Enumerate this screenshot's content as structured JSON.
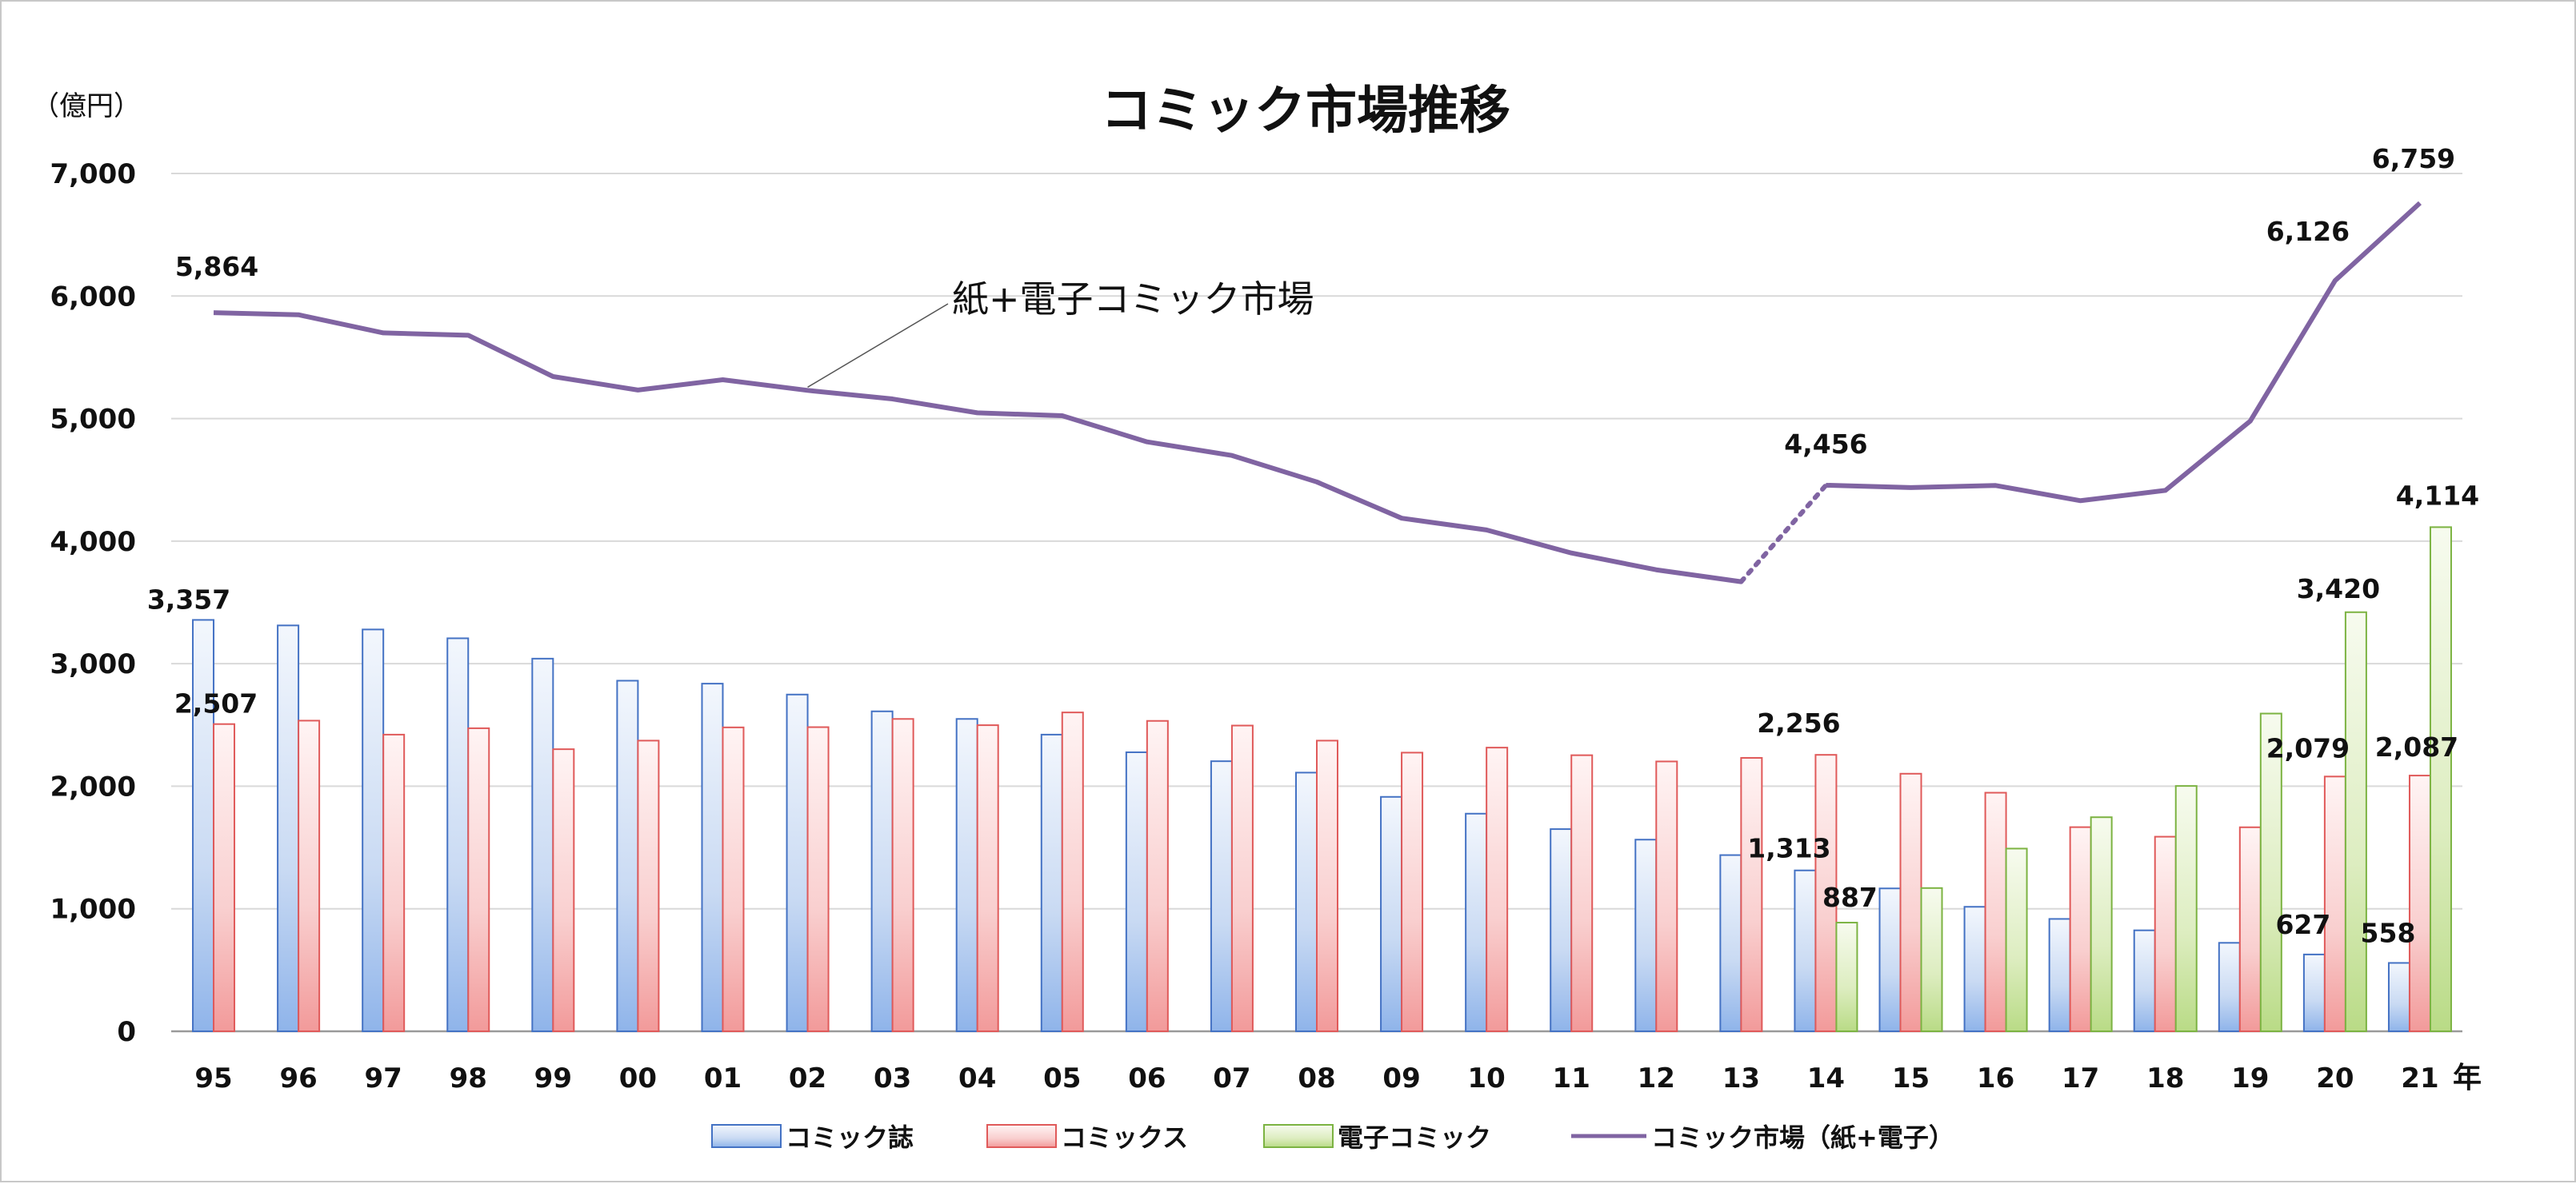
{
  "chart_data": {
    "type": "bar",
    "title": "コミック市場推移",
    "ylabel": "（億円）",
    "xlabel": "年",
    "ylim": [
      0,
      7000
    ],
    "yticks": [
      "0",
      "1,000",
      "2,000",
      "3,000",
      "4,000",
      "5,000",
      "6,000",
      "7,000"
    ],
    "grid": true,
    "legend_position": "bottom",
    "categories": [
      "95",
      "96",
      "97",
      "98",
      "99",
      "00",
      "01",
      "02",
      "03",
      "04",
      "05",
      "06",
      "07",
      "08",
      "09",
      "10",
      "11",
      "12",
      "13",
      "14",
      "15",
      "16",
      "17",
      "18",
      "19",
      "20",
      "21"
    ],
    "series": [
      {
        "name": "コミック誌",
        "type": "bar",
        "color": "#4472c4",
        "values": [
          3357,
          3312,
          3279,
          3207,
          3041,
          2861,
          2837,
          2748,
          2611,
          2549,
          2421,
          2277,
          2204,
          2111,
          1913,
          1776,
          1650,
          1564,
          1438,
          1313,
          1166,
          1016,
          917,
          824,
          722,
          627,
          558
        ]
      },
      {
        "name": "コミックス",
        "type": "bar",
        "color": "#e05a5a",
        "values": [
          2507,
          2535,
          2421,
          2473,
          2302,
          2372,
          2480,
          2482,
          2549,
          2498,
          2602,
          2533,
          2495,
          2372,
          2274,
          2315,
          2253,
          2202,
          2231,
          2256,
          2102,
          1947,
          1666,
          1588,
          1665,
          2079,
          2087
        ]
      },
      {
        "name": "電子コミック",
        "type": "bar",
        "color": "#7cb342",
        "values": [
          null,
          null,
          null,
          null,
          null,
          null,
          null,
          null,
          null,
          null,
          null,
          null,
          null,
          null,
          null,
          null,
          null,
          null,
          null,
          887,
          1169,
          1491,
          1747,
          2002,
          2593,
          3420,
          4114
        ]
      },
      {
        "name": "コミック市場（紙+電子）",
        "type": "line",
        "color": "#8064a2",
        "values": [
          5864,
          5847,
          5699,
          5680,
          5343,
          5233,
          5317,
          5230,
          5160,
          5047,
          5023,
          4810,
          4699,
          4483,
          4187,
          4091,
          3903,
          3766,
          3669,
          4456,
          4437,
          4454,
          4330,
          4414,
          4980,
          6126,
          6759
        ]
      }
    ],
    "point_labels": {
      "magazine": [
        {
          "index": 0,
          "text": "3,357"
        },
        {
          "index": 19,
          "text": "1,313"
        },
        {
          "index": 25,
          "text": "627"
        },
        {
          "index": 26,
          "text": "558"
        }
      ],
      "comics": [
        {
          "index": 0,
          "text": "2,507"
        },
        {
          "index": 19,
          "text": "2,256"
        },
        {
          "index": 25,
          "text": "2,079"
        },
        {
          "index": 26,
          "text": "2,087"
        }
      ],
      "digital": [
        {
          "index": 19,
          "text": "887"
        },
        {
          "index": 25,
          "text": "3,420"
        },
        {
          "index": 26,
          "text": "4,114"
        }
      ],
      "total": [
        {
          "index": 0,
          "text": "5,864"
        },
        {
          "index": 19,
          "text": "4,456"
        },
        {
          "index": 25,
          "text": "6,126"
        },
        {
          "index": 26,
          "text": "6,759"
        }
      ]
    },
    "annotation": {
      "text": "紙+電子コミック市場",
      "target_index": 7
    },
    "line_dotted_between": [
      18,
      19
    ]
  }
}
